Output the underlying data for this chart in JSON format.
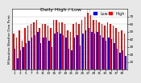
{
  "title": "Milwaukee Weather Dew Point",
  "subtitle": "Daily High / Low",
  "background_color": "#e8e8e8",
  "plot_bg": "#ffffff",
  "legend_high_color": "#ff0000",
  "legend_low_color": "#0000ff",
  "ylim": [
    0,
    80
  ],
  "yticks": [
    10,
    20,
    30,
    40,
    50,
    60,
    70
  ],
  "highs": [
    48,
    42,
    52,
    38,
    55,
    58,
    60,
    62,
    65,
    55,
    60,
    60,
    58,
    55,
    65,
    65,
    62,
    62,
    60,
    52,
    50,
    60,
    62,
    60,
    65,
    70,
    75,
    72,
    65,
    65,
    62,
    60,
    58,
    62,
    60,
    58,
    55,
    50,
    52,
    48
  ],
  "lows": [
    28,
    15,
    25,
    30,
    35,
    38,
    42,
    45,
    50,
    35,
    42,
    42,
    38,
    30,
    48,
    50,
    48,
    45,
    42,
    28,
    25,
    42,
    45,
    32,
    48,
    52,
    55,
    50,
    48,
    50,
    45,
    42,
    38,
    42,
    40,
    35,
    28,
    22,
    25,
    18
  ],
  "n_bars": 40,
  "dotted_lines": [
    25.5,
    26.5
  ],
  "title_fontsize": 4.5,
  "tick_fontsize": 3.0,
  "legend_fontsize": 3.5,
  "bar_width": 0.42,
  "xtick_labels": [
    "1",
    "2",
    "3",
    "4",
    "5",
    "6",
    "7",
    "8",
    "9",
    "10",
    "11",
    "12",
    "13",
    "14",
    "15",
    "16",
    "17",
    "18",
    "19",
    "20",
    "21",
    "22",
    "23",
    "24",
    "25",
    "26",
    "27",
    "28",
    "29",
    "30"
  ]
}
